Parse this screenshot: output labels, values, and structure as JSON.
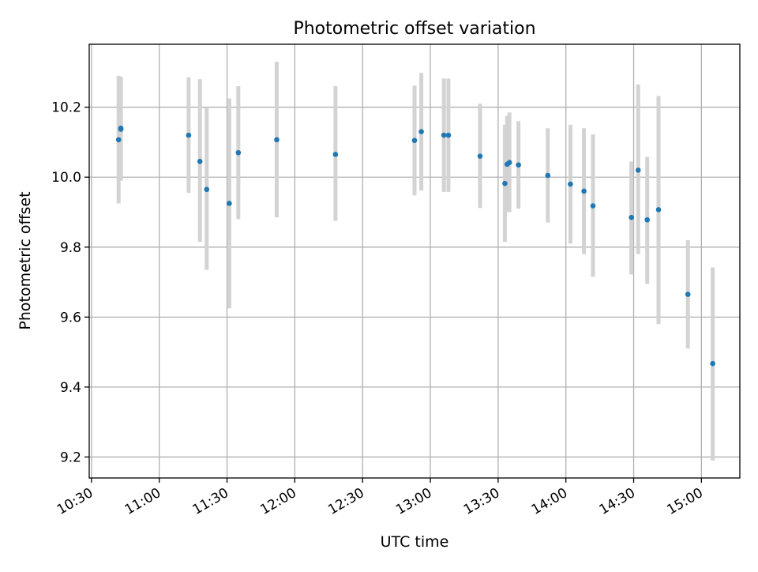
{
  "chart_data": {
    "type": "scatter",
    "title": "Photometric offset variation",
    "xlabel": "UTC time",
    "ylabel": "Photometric offset",
    "x_ticks": [
      "10:30",
      "11:00",
      "11:30",
      "12:00",
      "12:30",
      "13:00",
      "13:30",
      "14:00",
      "14:30",
      "15:00"
    ],
    "y_ticks": [
      "9.2",
      "9.4",
      "9.6",
      "9.8",
      "10.0",
      "10.2"
    ],
    "xlim": [
      "10:29",
      "15:17"
    ],
    "ylim": [
      9.14,
      10.38
    ],
    "grid": true,
    "points": [
      {
        "x": "10:42",
        "y": 10.107,
        "yerr_low": 9.925,
        "yerr_high": 10.29
      },
      {
        "x": "10:43",
        "y": 10.14,
        "yerr_low": 10.0,
        "yerr_high": 10.285
      },
      {
        "x": "10:43",
        "y": 10.137,
        "yerr_low": 9.99,
        "yerr_high": 10.287
      },
      {
        "x": "11:13",
        "y": 10.12,
        "yerr_low": 9.955,
        "yerr_high": 10.285
      },
      {
        "x": "11:18",
        "y": 10.045,
        "yerr_low": 9.815,
        "yerr_high": 10.28
      },
      {
        "x": "11:21",
        "y": 9.965,
        "yerr_low": 9.735,
        "yerr_high": 10.2
      },
      {
        "x": "11:31",
        "y": 9.925,
        "yerr_low": 9.625,
        "yerr_high": 10.225
      },
      {
        "x": "11:35",
        "y": 10.07,
        "yerr_low": 9.88,
        "yerr_high": 10.26
      },
      {
        "x": "11:52",
        "y": 10.107,
        "yerr_low": 9.885,
        "yerr_high": 10.33
      },
      {
        "x": "12:18",
        "y": 10.065,
        "yerr_low": 9.875,
        "yerr_high": 10.26
      },
      {
        "x": "12:53",
        "y": 10.105,
        "yerr_low": 9.948,
        "yerr_high": 10.262
      },
      {
        "x": "12:56",
        "y": 10.13,
        "yerr_low": 9.962,
        "yerr_high": 10.298
      },
      {
        "x": "13:06",
        "y": 10.12,
        "yerr_low": 9.958,
        "yerr_high": 10.282
      },
      {
        "x": "13:08",
        "y": 10.12,
        "yerr_low": 9.958,
        "yerr_high": 10.282
      },
      {
        "x": "13:22",
        "y": 10.06,
        "yerr_low": 9.912,
        "yerr_high": 10.21
      },
      {
        "x": "13:33",
        "y": 9.982,
        "yerr_low": 9.815,
        "yerr_high": 10.15
      },
      {
        "x": "13:34",
        "y": 10.037,
        "yerr_low": 9.9,
        "yerr_high": 10.175
      },
      {
        "x": "13:35",
        "y": 10.042,
        "yerr_low": 9.9,
        "yerr_high": 10.185
      },
      {
        "x": "13:39",
        "y": 10.035,
        "yerr_low": 9.91,
        "yerr_high": 10.16
      },
      {
        "x": "13:52",
        "y": 10.005,
        "yerr_low": 9.87,
        "yerr_high": 10.14
      },
      {
        "x": "14:02",
        "y": 9.98,
        "yerr_low": 9.81,
        "yerr_high": 10.15
      },
      {
        "x": "14:08",
        "y": 9.96,
        "yerr_low": 9.78,
        "yerr_high": 10.14
      },
      {
        "x": "14:12",
        "y": 9.918,
        "yerr_low": 9.715,
        "yerr_high": 10.122
      },
      {
        "x": "14:29",
        "y": 9.885,
        "yerr_low": 9.722,
        "yerr_high": 10.045
      },
      {
        "x": "14:32",
        "y": 10.02,
        "yerr_low": 9.78,
        "yerr_high": 10.265
      },
      {
        "x": "14:36",
        "y": 9.878,
        "yerr_low": 9.695,
        "yerr_high": 10.058
      },
      {
        "x": "14:41",
        "y": 9.907,
        "yerr_low": 9.58,
        "yerr_high": 10.232
      },
      {
        "x": "14:54",
        "y": 9.665,
        "yerr_low": 9.51,
        "yerr_high": 9.82
      },
      {
        "x": "15:05",
        "y": 9.467,
        "yerr_low": 9.19,
        "yerr_high": 9.742
      }
    ],
    "colors": {
      "marker": "#1f77b4",
      "errorbar": "#d3d3d3",
      "grid": "#b0b0b0"
    }
  }
}
